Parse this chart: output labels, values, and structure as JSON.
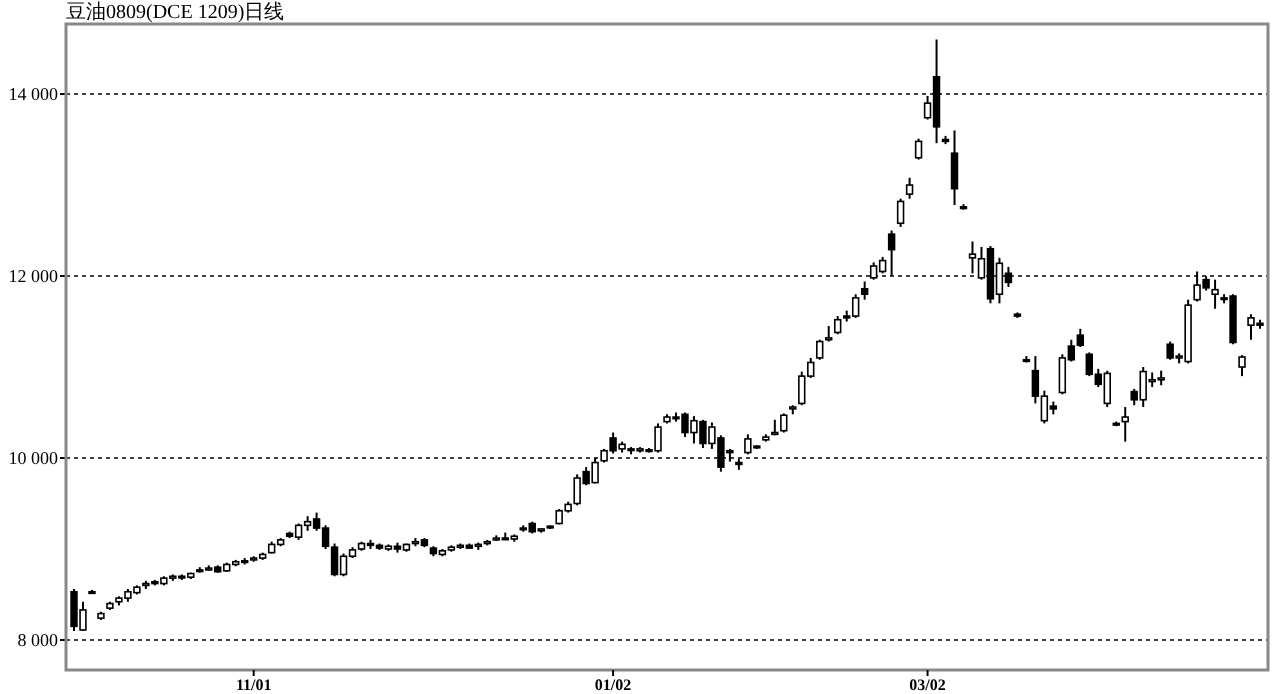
{
  "chart_data": {
    "type": "candlestick",
    "title": "豆油0809(DCE 1209)日线",
    "categories": [
      null,
      null,
      null,
      null,
      null,
      null,
      null,
      null,
      null,
      null,
      null,
      null,
      null,
      null,
      null,
      null,
      null,
      null,
      null,
      null,
      "11/01",
      null,
      null,
      null,
      null,
      null,
      null,
      null,
      null,
      null,
      null,
      null,
      null,
      null,
      null,
      null,
      null,
      null,
      null,
      null,
      null,
      null,
      null,
      null,
      null,
      null,
      null,
      null,
      null,
      null,
      null,
      null,
      null,
      null,
      null,
      null,
      null,
      null,
      null,
      null,
      "01/02",
      null,
      null,
      null,
      null,
      null,
      null,
      null,
      null,
      null,
      null,
      null,
      null,
      null,
      null,
      null,
      null,
      null,
      null,
      null,
      null,
      null,
      null,
      null,
      null,
      null,
      null,
      null,
      null,
      null,
      null,
      null,
      null,
      null,
      null,
      "03/02",
      null,
      null,
      null,
      null,
      null,
      null,
      null,
      null,
      null,
      null,
      null,
      null,
      null,
      null,
      null,
      null,
      null,
      null,
      null,
      null,
      null,
      null,
      null,
      null,
      null,
      null,
      null,
      null,
      null,
      null,
      null,
      null,
      null,
      null,
      null,
      null,
      null
    ],
    "ohlc": [
      [
        8530,
        8560,
        8100,
        8150
      ],
      [
        8110,
        8420,
        8100,
        8330
      ],
      [
        8530,
        8550,
        8510,
        8520
      ],
      [
        8240,
        8310,
        8220,
        8290
      ],
      [
        8350,
        8420,
        8330,
        8400
      ],
      [
        8420,
        8480,
        8380,
        8460
      ],
      [
        8460,
        8560,
        8420,
        8530
      ],
      [
        8520,
        8600,
        8500,
        8580
      ],
      [
        8600,
        8650,
        8560,
        8620
      ],
      [
        8640,
        8660,
        8600,
        8620
      ],
      [
        8620,
        8700,
        8600,
        8680
      ],
      [
        8680,
        8720,
        8650,
        8700
      ],
      [
        8700,
        8720,
        8660,
        8690
      ],
      [
        8690,
        8740,
        8670,
        8730
      ],
      [
        8760,
        8800,
        8740,
        8770
      ],
      [
        8770,
        8820,
        8760,
        8790
      ],
      [
        8800,
        8820,
        8740,
        8750
      ],
      [
        8760,
        8850,
        8750,
        8830
      ],
      [
        8830,
        8880,
        8810,
        8860
      ],
      [
        8860,
        8900,
        8830,
        8870
      ],
      [
        8880,
        8920,
        8860,
        8900
      ],
      [
        8900,
        8960,
        8880,
        8940
      ],
      [
        8960,
        9080,
        8950,
        9050
      ],
      [
        9050,
        9120,
        9030,
        9100
      ],
      [
        9170,
        9190,
        9120,
        9140
      ],
      [
        9130,
        9280,
        9100,
        9260
      ],
      [
        9260,
        9360,
        9200,
        9300
      ],
      [
        9330,
        9400,
        9200,
        9230
      ],
      [
        9230,
        9260,
        9000,
        9030
      ],
      [
        9020,
        9060,
        8700,
        8720
      ],
      [
        8720,
        8950,
        8700,
        8920
      ],
      [
        8920,
        9020,
        8900,
        8990
      ],
      [
        9000,
        9080,
        8980,
        9060
      ],
      [
        9060,
        9100,
        9000,
        9040
      ],
      [
        9040,
        9060,
        8990,
        9010
      ],
      [
        9000,
        9050,
        8980,
        9030
      ],
      [
        9030,
        9070,
        8960,
        9000
      ],
      [
        8990,
        9060,
        8970,
        9050
      ],
      [
        9060,
        9120,
        9030,
        9080
      ],
      [
        9100,
        9120,
        9020,
        9040
      ],
      [
        9010,
        9030,
        8920,
        8950
      ],
      [
        8940,
        9000,
        8920,
        8980
      ],
      [
        8990,
        9040,
        8970,
        9020
      ],
      [
        9020,
        9060,
        9000,
        9040
      ],
      [
        9040,
        9060,
        9000,
        9010
      ],
      [
        9030,
        9070,
        8990,
        9050
      ],
      [
        9060,
        9100,
        9040,
        9080
      ],
      [
        9100,
        9150,
        9090,
        9120
      ],
      [
        9120,
        9180,
        9100,
        9110
      ],
      [
        9110,
        9160,
        9080,
        9140
      ],
      [
        9220,
        9260,
        9190,
        9230
      ],
      [
        9280,
        9300,
        9170,
        9190
      ],
      [
        9200,
        9230,
        9180,
        9220
      ],
      [
        9240,
        9260,
        9220,
        9250
      ],
      [
        9280,
        9440,
        9270,
        9420
      ],
      [
        9420,
        9520,
        9400,
        9490
      ],
      [
        9500,
        9820,
        9480,
        9780
      ],
      [
        9850,
        9900,
        9700,
        9720
      ],
      [
        9730,
        10000,
        9720,
        9950
      ],
      [
        9970,
        10100,
        9950,
        10080
      ],
      [
        10220,
        10280,
        10050,
        10080
      ],
      [
        10100,
        10180,
        10060,
        10150
      ],
      [
        10100,
        10120,
        10040,
        10090
      ],
      [
        10080,
        10120,
        10060,
        10100
      ],
      [
        10090,
        10110,
        10060,
        10080
      ],
      [
        10080,
        10380,
        10060,
        10340
      ],
      [
        10400,
        10480,
        10380,
        10450
      ],
      [
        10450,
        10500,
        10400,
        10440
      ],
      [
        10480,
        10500,
        10230,
        10280
      ],
      [
        10280,
        10460,
        10160,
        10410
      ],
      [
        10400,
        10420,
        10110,
        10160
      ],
      [
        10160,
        10390,
        10100,
        10340
      ],
      [
        10220,
        10250,
        9850,
        9900
      ],
      [
        10080,
        10100,
        9960,
        10060
      ],
      [
        9950,
        9990,
        9870,
        9930
      ],
      [
        10060,
        10260,
        10040,
        10210
      ],
      [
        10120,
        10140,
        10100,
        10130
      ],
      [
        10200,
        10260,
        10180,
        10230
      ],
      [
        10260,
        10420,
        10250,
        10280
      ],
      [
        10300,
        10490,
        10280,
        10470
      ],
      [
        10540,
        10580,
        10480,
        10560
      ],
      [
        10600,
        10950,
        10580,
        10900
      ],
      [
        10900,
        11100,
        10880,
        11050
      ],
      [
        11100,
        11300,
        11080,
        11280
      ],
      [
        11300,
        11450,
        11280,
        11320
      ],
      [
        11380,
        11560,
        11360,
        11520
      ],
      [
        11560,
        11620,
        11500,
        11540
      ],
      [
        11560,
        11800,
        11540,
        11760
      ],
      [
        11860,
        11940,
        11740,
        11800
      ],
      [
        11980,
        12150,
        11960,
        12110
      ],
      [
        12050,
        12210,
        12030,
        12170
      ],
      [
        12460,
        12500,
        12000,
        12290
      ],
      [
        12580,
        12850,
        12540,
        12820
      ],
      [
        12900,
        13080,
        12850,
        13000
      ],
      [
        13300,
        13510,
        13280,
        13480
      ],
      [
        13740,
        13980,
        13720,
        13900
      ],
      [
        14190,
        14600,
        13460,
        13640
      ],
      [
        13500,
        13540,
        13450,
        13480
      ],
      [
        13350,
        13600,
        12780,
        12960
      ],
      [
        12760,
        12790,
        12730,
        12760
      ],
      [
        12200,
        12380,
        12030,
        12240
      ],
      [
        11980,
        12320,
        11960,
        12190
      ],
      [
        12300,
        12330,
        11700,
        11750
      ],
      [
        11800,
        12200,
        11700,
        12140
      ],
      [
        12030,
        12100,
        11880,
        11930
      ],
      [
        11580,
        11600,
        11540,
        11560
      ],
      [
        11080,
        11120,
        11050,
        11080
      ],
      [
        10960,
        11120,
        10600,
        10680
      ],
      [
        10410,
        10740,
        10380,
        10680
      ],
      [
        10570,
        10620,
        10480,
        10540
      ],
      [
        10720,
        11140,
        10700,
        11100
      ],
      [
        11230,
        11300,
        11060,
        11080
      ],
      [
        11350,
        11420,
        11220,
        11240
      ],
      [
        11140,
        11160,
        10900,
        10920
      ],
      [
        10920,
        10980,
        10780,
        10810
      ],
      [
        10600,
        10960,
        10560,
        10930
      ],
      [
        10380,
        10400,
        10350,
        10380
      ],
      [
        10400,
        10560,
        10180,
        10450
      ],
      [
        10730,
        10760,
        10580,
        10640
      ],
      [
        10640,
        11000,
        10560,
        10950
      ],
      [
        10840,
        10940,
        10780,
        10860
      ],
      [
        10860,
        10960,
        10800,
        10880
      ],
      [
        11250,
        11280,
        11080,
        11100
      ],
      [
        11100,
        11150,
        11040,
        11120
      ],
      [
        11060,
        11740,
        11040,
        11680
      ],
      [
        11740,
        12050,
        11720,
        11900
      ],
      [
        11960,
        12000,
        11840,
        11870
      ],
      [
        11800,
        11960,
        11640,
        11850
      ],
      [
        11760,
        11800,
        11700,
        11760
      ],
      [
        11780,
        11800,
        11250,
        11270
      ],
      [
        11000,
        11130,
        10900,
        11110
      ],
      [
        11460,
        11580,
        11300,
        11540
      ],
      [
        11480,
        11520,
        11420,
        11460
      ]
    ],
    "ylim": [
      7670,
      14770
    ],
    "yticks": [
      {
        "value": 8000,
        "label": "8 000"
      },
      {
        "value": 10000,
        "label": "10 000"
      },
      {
        "value": 12000,
        "label": "12 000"
      },
      {
        "value": 14000,
        "label": "14 000"
      }
    ],
    "grid": "y"
  }
}
